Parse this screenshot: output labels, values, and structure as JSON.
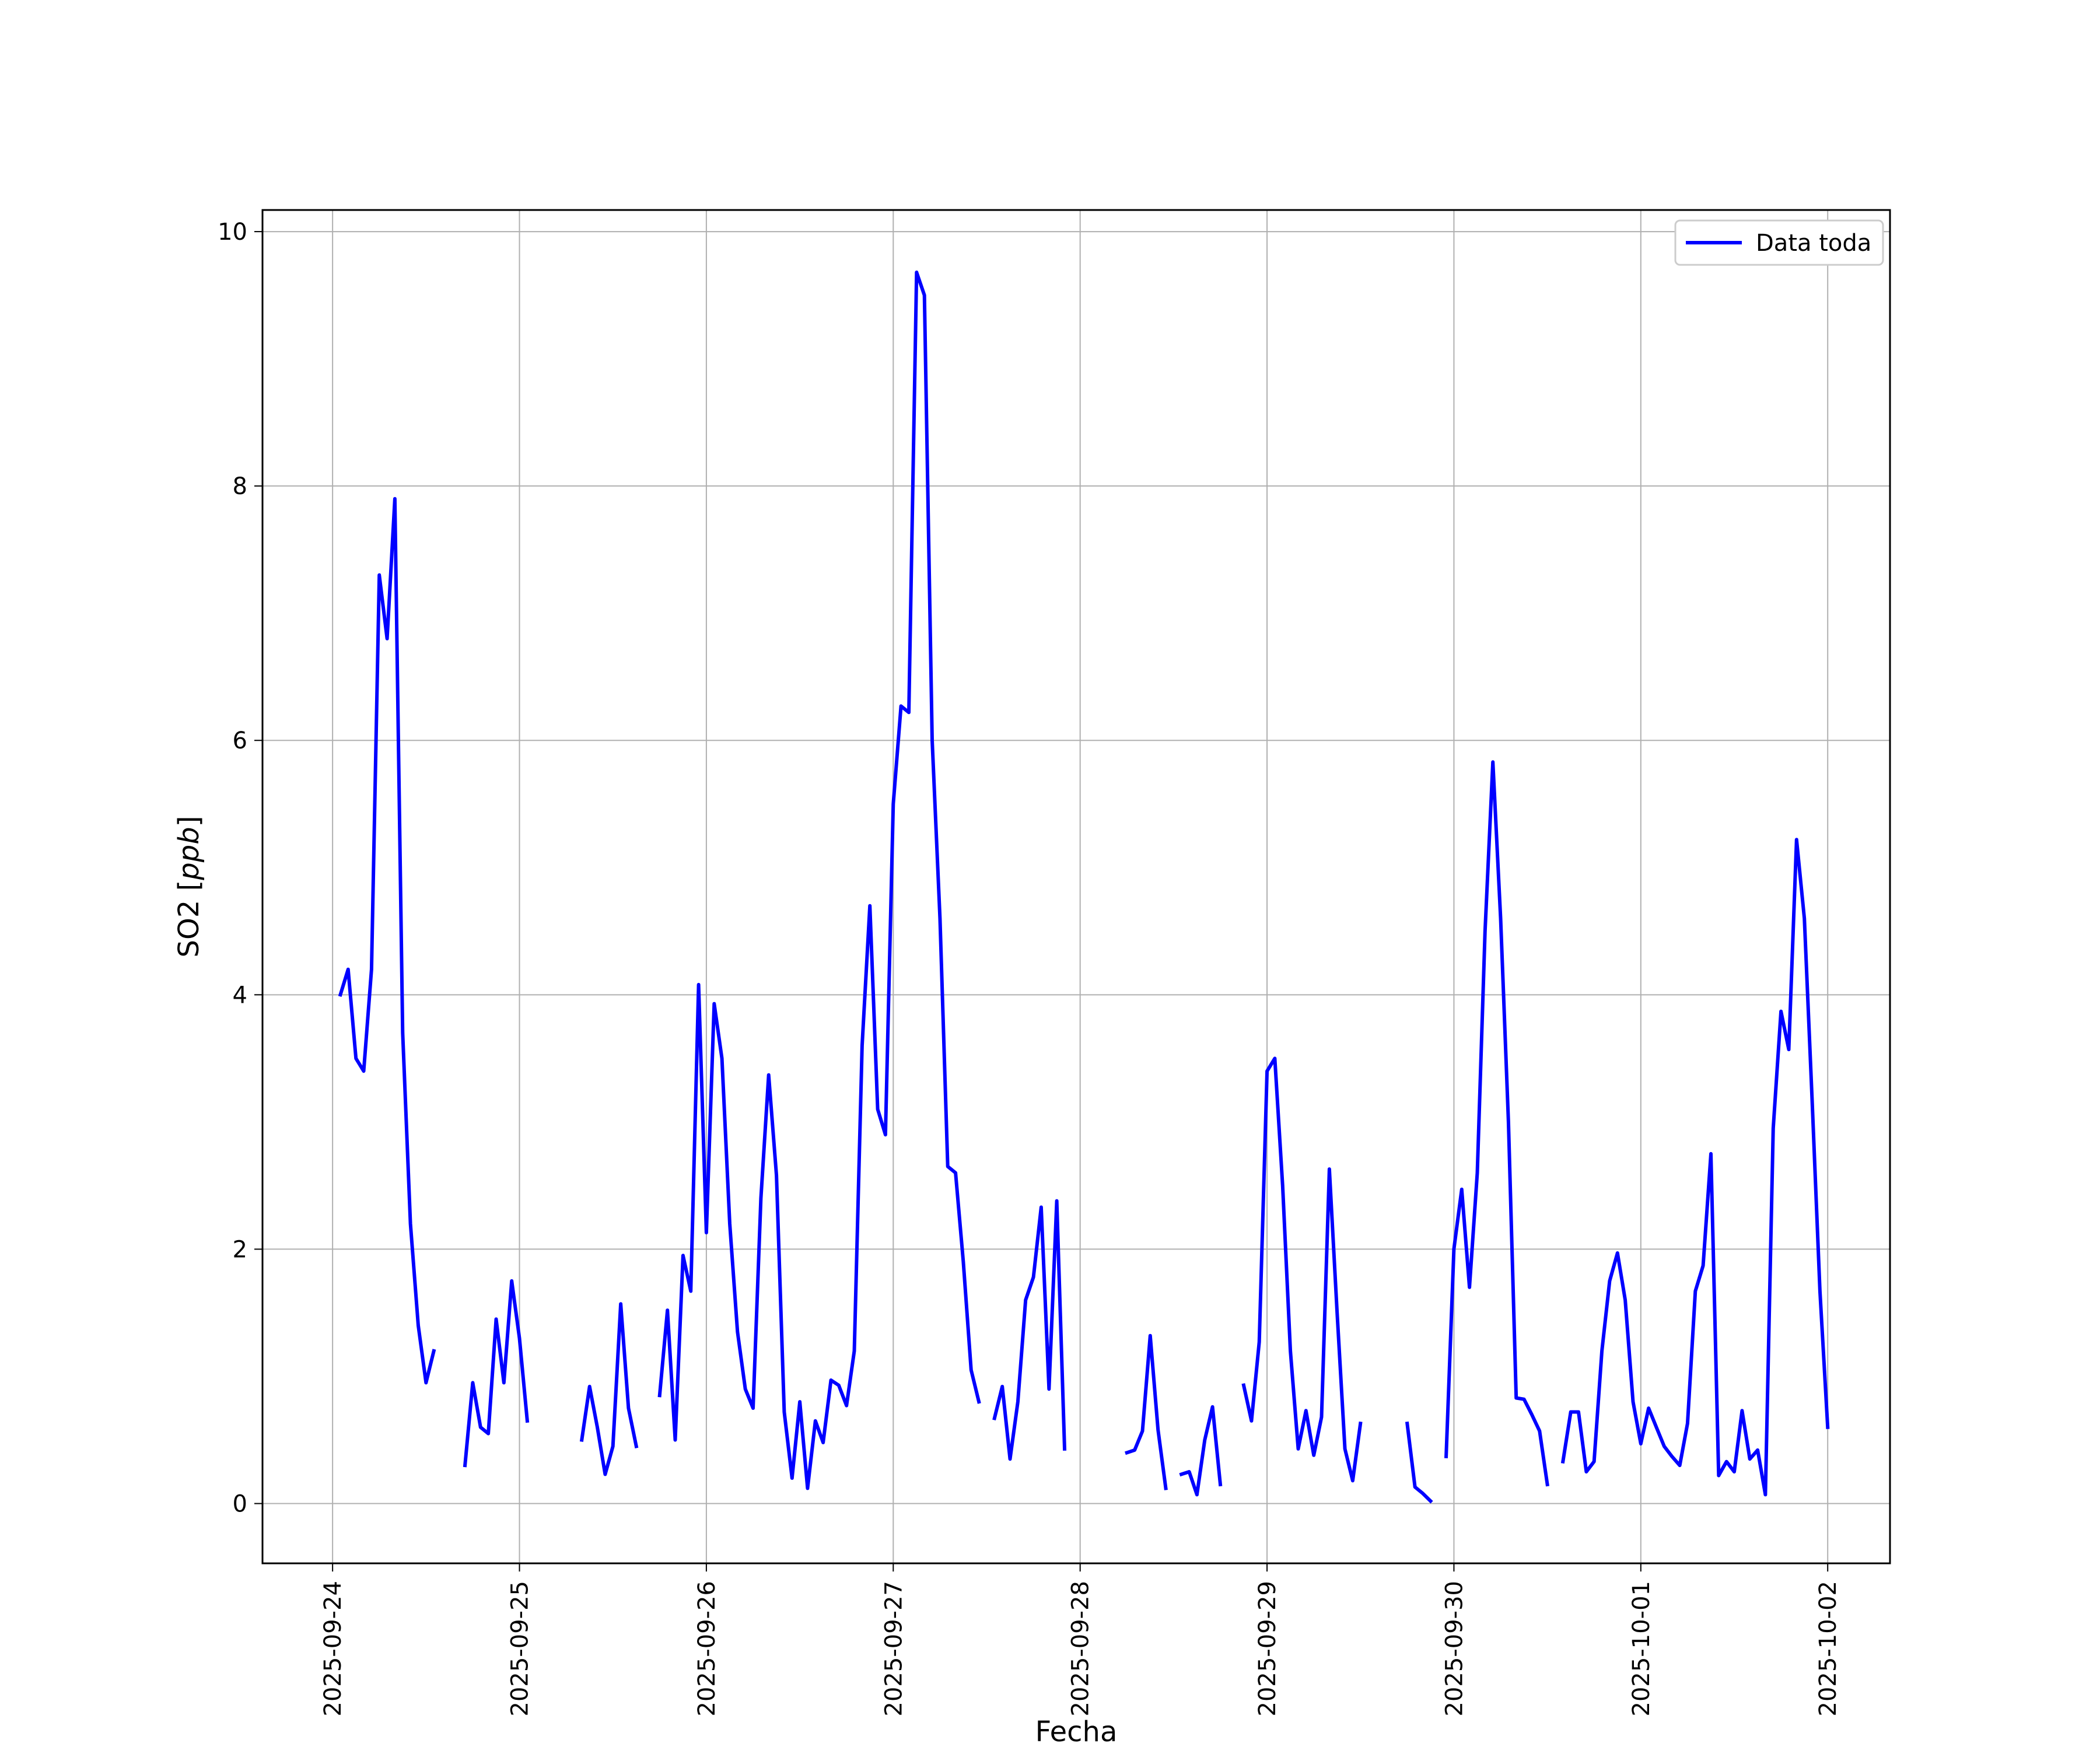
{
  "chart_data": {
    "type": "line",
    "title": "",
    "xlabel": "Fecha",
    "ylabel": "SO2 [ppb]",
    "ylabel_parts": {
      "prefix": "SO2 [",
      "unit": "ppb",
      "suffix": "]"
    },
    "xlim": [
      "2025-09-23 15:00",
      "2025-10-02 08:00"
    ],
    "ylim": [
      -0.47,
      10.17
    ],
    "x_ticks": [
      "2025-09-24",
      "2025-09-25",
      "2025-09-26",
      "2025-09-27",
      "2025-09-28",
      "2025-09-29",
      "2025-09-30",
      "2025-10-01",
      "2025-10-02"
    ],
    "y_ticks": [
      0,
      2,
      4,
      6,
      8,
      10
    ],
    "y_tick_labels": [
      "0",
      "2",
      "4",
      "6",
      "8",
      "10"
    ],
    "grid": true,
    "legend": {
      "position": "top-right"
    },
    "series": [
      {
        "name": "Data toda",
        "color": "#0000ff",
        "segments": [
          [
            [
              "2025-09-24 01:00",
              4.0
            ],
            [
              "2025-09-24 02:00",
              4.2
            ],
            [
              "2025-09-24 03:00",
              3.5
            ],
            [
              "2025-09-24 04:00",
              3.4
            ],
            [
              "2025-09-24 05:00",
              4.2
            ],
            [
              "2025-09-24 06:00",
              7.3
            ],
            [
              "2025-09-24 07:00",
              6.8
            ],
            [
              "2025-09-24 08:00",
              7.9
            ],
            [
              "2025-09-24 09:00",
              3.7
            ],
            [
              "2025-09-24 10:00",
              2.2
            ],
            [
              "2025-09-24 11:00",
              1.4
            ],
            [
              "2025-09-24 12:00",
              0.95
            ],
            [
              "2025-09-24 13:00",
              1.2
            ]
          ],
          [
            [
              "2025-09-24 17:00",
              0.3
            ],
            [
              "2025-09-24 18:00",
              0.95
            ],
            [
              "2025-09-24 19:00",
              0.6
            ],
            [
              "2025-09-24 20:00",
              0.55
            ],
            [
              "2025-09-24 21:00",
              1.45
            ],
            [
              "2025-09-24 22:00",
              0.95
            ],
            [
              "2025-09-24 23:00",
              1.75
            ],
            [
              "2025-09-25 00:00",
              1.3
            ],
            [
              "2025-09-25 01:00",
              0.65
            ]
          ],
          [
            [
              "2025-09-25 08:00",
              0.5
            ],
            [
              "2025-09-25 09:00",
              0.92
            ],
            [
              "2025-09-25 10:00",
              0.6
            ],
            [
              "2025-09-25 11:00",
              0.23
            ],
            [
              "2025-09-25 12:00",
              0.45
            ],
            [
              "2025-09-25 13:00",
              1.57
            ],
            [
              "2025-09-25 14:00",
              0.75
            ],
            [
              "2025-09-25 15:00",
              0.45
            ]
          ],
          [
            [
              "2025-09-25 18:00",
              0.85
            ],
            [
              "2025-09-25 19:00",
              1.52
            ],
            [
              "2025-09-25 20:00",
              0.5
            ],
            [
              "2025-09-25 21:00",
              1.95
            ],
            [
              "2025-09-25 22:00",
              1.67
            ],
            [
              "2025-09-25 23:00",
              4.08
            ],
            [
              "2025-09-26 00:00",
              2.13
            ],
            [
              "2025-09-26 01:00",
              3.93
            ],
            [
              "2025-09-26 02:00",
              3.5
            ],
            [
              "2025-09-26 03:00",
              2.2
            ],
            [
              "2025-09-26 04:00",
              1.35
            ],
            [
              "2025-09-26 05:00",
              0.9
            ],
            [
              "2025-09-26 06:00",
              0.75
            ],
            [
              "2025-09-26 07:00",
              2.4
            ],
            [
              "2025-09-26 08:00",
              3.37
            ],
            [
              "2025-09-26 09:00",
              2.58
            ],
            [
              "2025-09-26 10:00",
              0.72
            ],
            [
              "2025-09-26 11:00",
              0.2
            ],
            [
              "2025-09-26 12:00",
              0.8
            ],
            [
              "2025-09-26 13:00",
              0.12
            ],
            [
              "2025-09-26 14:00",
              0.65
            ],
            [
              "2025-09-26 15:00",
              0.48
            ],
            [
              "2025-09-26 16:00",
              0.97
            ],
            [
              "2025-09-26 17:00",
              0.93
            ],
            [
              "2025-09-26 18:00",
              0.77
            ],
            [
              "2025-09-26 19:00",
              1.2
            ],
            [
              "2025-09-26 20:00",
              3.6
            ],
            [
              "2025-09-26 21:00",
              4.7
            ],
            [
              "2025-09-26 22:00",
              3.1
            ],
            [
              "2025-09-26 23:00",
              2.9
            ],
            [
              "2025-09-27 00:00",
              5.5
            ],
            [
              "2025-09-27 01:00",
              6.27
            ],
            [
              "2025-09-27 02:00",
              6.22
            ],
            [
              "2025-09-27 03:00",
              9.68
            ],
            [
              "2025-09-27 04:00",
              9.5
            ],
            [
              "2025-09-27 05:00",
              6.0
            ],
            [
              "2025-09-27 06:00",
              4.6
            ],
            [
              "2025-09-27 07:00",
              2.65
            ],
            [
              "2025-09-27 08:00",
              2.6
            ],
            [
              "2025-09-27 09:00",
              1.9
            ],
            [
              "2025-09-27 10:00",
              1.05
            ],
            [
              "2025-09-27 11:00",
              0.8
            ]
          ],
          [
            [
              "2025-09-27 13:00",
              0.67
            ],
            [
              "2025-09-27 14:00",
              0.92
            ],
            [
              "2025-09-27 15:00",
              0.35
            ],
            [
              "2025-09-27 16:00",
              0.8
            ],
            [
              "2025-09-27 17:00",
              1.6
            ],
            [
              "2025-09-27 18:00",
              1.78
            ],
            [
              "2025-09-27 19:00",
              2.33
            ],
            [
              "2025-09-27 20:00",
              0.9
            ],
            [
              "2025-09-27 21:00",
              2.38
            ],
            [
              "2025-09-27 22:00",
              0.43
            ]
          ],
          [
            [
              "2025-09-28 06:00",
              0.4
            ],
            [
              "2025-09-28 07:00",
              0.42
            ],
            [
              "2025-09-28 08:00",
              0.57
            ],
            [
              "2025-09-28 09:00",
              1.32
            ],
            [
              "2025-09-28 10:00",
              0.58
            ],
            [
              "2025-09-28 11:00",
              0.12
            ]
          ],
          [
            [
              "2025-09-28 13:00",
              0.23
            ],
            [
              "2025-09-28 14:00",
              0.25
            ],
            [
              "2025-09-28 15:00",
              0.07
            ],
            [
              "2025-09-28 16:00",
              0.5
            ],
            [
              "2025-09-28 17:00",
              0.76
            ],
            [
              "2025-09-28 18:00",
              0.15
            ]
          ],
          [
            [
              "2025-09-28 21:00",
              0.93
            ],
            [
              "2025-09-28 22:00",
              0.65
            ],
            [
              "2025-09-28 23:00",
              1.27
            ],
            [
              "2025-09-29 00:00",
              3.4
            ],
            [
              "2025-09-29 01:00",
              3.5
            ],
            [
              "2025-09-29 02:00",
              2.5
            ],
            [
              "2025-09-29 03:00",
              1.2
            ],
            [
              "2025-09-29 04:00",
              0.43
            ],
            [
              "2025-09-29 05:00",
              0.73
            ],
            [
              "2025-09-29 06:00",
              0.38
            ],
            [
              "2025-09-29 07:00",
              0.68
            ],
            [
              "2025-09-29 08:00",
              2.63
            ],
            [
              "2025-09-29 09:00",
              1.5
            ],
            [
              "2025-09-29 10:00",
              0.43
            ],
            [
              "2025-09-29 11:00",
              0.18
            ],
            [
              "2025-09-29 12:00",
              0.63
            ]
          ],
          [
            [
              "2025-09-29 18:00",
              0.63
            ],
            [
              "2025-09-29 19:00",
              0.13
            ],
            [
              "2025-09-29 20:00",
              0.08
            ],
            [
              "2025-09-29 21:00",
              0.02
            ]
          ],
          [
            [
              "2025-09-29 23:00",
              0.37
            ],
            [
              "2025-09-30 00:00",
              2.0
            ],
            [
              "2025-09-30 01:00",
              2.47
            ],
            [
              "2025-09-30 02:00",
              1.7
            ],
            [
              "2025-09-30 03:00",
              2.6
            ],
            [
              "2025-09-30 04:00",
              4.5
            ],
            [
              "2025-09-30 05:00",
              5.83
            ],
            [
              "2025-09-30 06:00",
              4.6
            ],
            [
              "2025-09-30 07:00",
              3.0
            ],
            [
              "2025-09-30 08:00",
              0.83
            ],
            [
              "2025-09-30 09:00",
              0.82
            ],
            [
              "2025-09-30 10:00",
              0.7
            ],
            [
              "2025-09-30 11:00",
              0.57
            ],
            [
              "2025-09-30 12:00",
              0.15
            ]
          ],
          [
            [
              "2025-09-30 14:00",
              0.33
            ],
            [
              "2025-09-30 15:00",
              0.72
            ],
            [
              "2025-09-30 16:00",
              0.72
            ],
            [
              "2025-09-30 17:00",
              0.25
            ],
            [
              "2025-09-30 18:00",
              0.33
            ],
            [
              "2025-09-30 19:00",
              1.2
            ],
            [
              "2025-09-30 20:00",
              1.75
            ],
            [
              "2025-09-30 21:00",
              1.97
            ],
            [
              "2025-09-30 22:00",
              1.6
            ],
            [
              "2025-09-30 23:00",
              0.8
            ],
            [
              "2025-10-01 00:00",
              0.47
            ],
            [
              "2025-10-01 01:00",
              0.75
            ],
            [
              "2025-10-01 02:00",
              0.6
            ],
            [
              "2025-10-01 03:00",
              0.45
            ],
            [
              "2025-10-01 04:00",
              0.37
            ],
            [
              "2025-10-01 05:00",
              0.3
            ],
            [
              "2025-10-01 06:00",
              0.63
            ],
            [
              "2025-10-01 07:00",
              1.67
            ],
            [
              "2025-10-01 08:00",
              1.87
            ],
            [
              "2025-10-01 09:00",
              2.75
            ],
            [
              "2025-10-01 10:00",
              0.22
            ],
            [
              "2025-10-01 11:00",
              0.33
            ],
            [
              "2025-10-01 12:00",
              0.25
            ],
            [
              "2025-10-01 13:00",
              0.73
            ],
            [
              "2025-10-01 14:00",
              0.35
            ],
            [
              "2025-10-01 15:00",
              0.42
            ],
            [
              "2025-10-01 16:00",
              0.07
            ],
            [
              "2025-10-01 17:00",
              2.95
            ],
            [
              "2025-10-01 18:00",
              3.87
            ],
            [
              "2025-10-01 19:00",
              3.57
            ],
            [
              "2025-10-01 20:00",
              5.22
            ],
            [
              "2025-10-01 21:00",
              4.6
            ],
            [
              "2025-10-01 22:00",
              3.17
            ],
            [
              "2025-10-01 23:00",
              1.67
            ],
            [
              "2025-10-02 00:00",
              0.6
            ]
          ]
        ]
      }
    ]
  }
}
